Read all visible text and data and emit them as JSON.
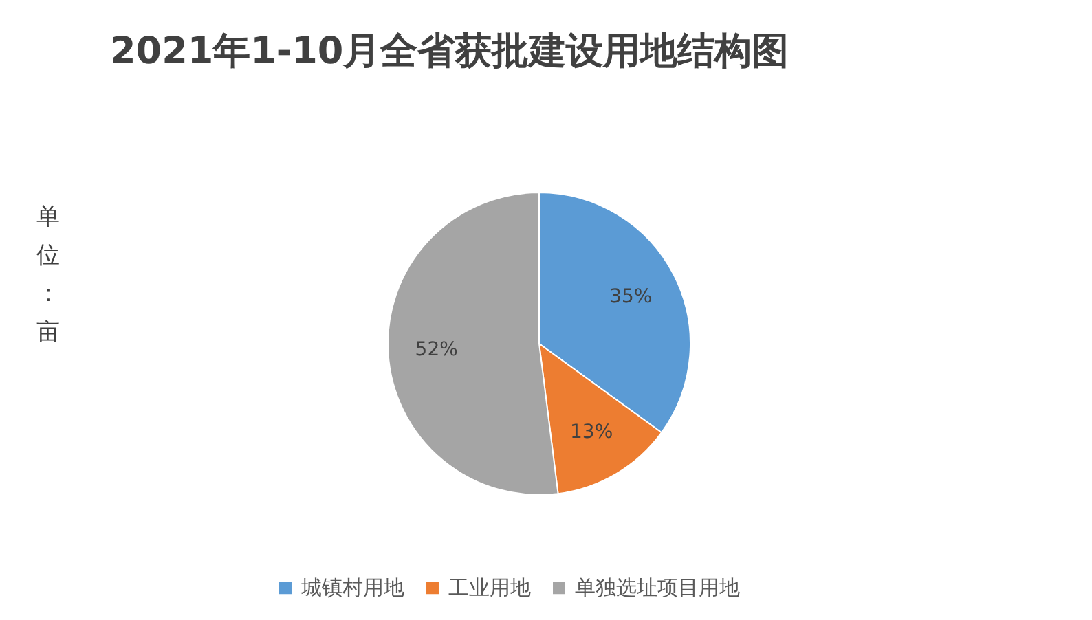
{
  "chart_data": {
    "type": "pie",
    "title": "2021年1-10月全省获批建设用地结构图",
    "categories": [
      "城镇村用地",
      "工业用地",
      "单独选址项目用地"
    ],
    "values": [
      35,
      13,
      52
    ],
    "colors": [
      "#5b9bd5",
      "#ed7d31",
      "#a5a5a5"
    ],
    "value_labels": [
      "35%",
      "13%",
      "52%"
    ],
    "legend": "bottom",
    "annotations": [
      "单位：亩"
    ]
  }
}
